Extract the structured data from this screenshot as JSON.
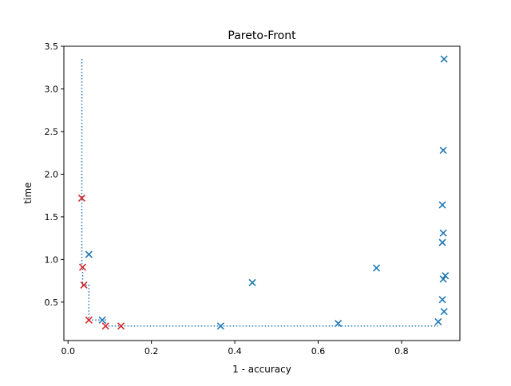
{
  "chart_data": {
    "type": "scatter",
    "title": "Pareto-Front",
    "xlabel": "1 - accuracy",
    "ylabel": "time",
    "xlim": [
      -0.01,
      0.94
    ],
    "ylim": [
      0.05,
      3.5
    ],
    "xticks": [
      0.0,
      0.2,
      0.4,
      0.6,
      0.8
    ],
    "xtick_labels": [
      "0.0",
      "0.2",
      "0.4",
      "0.6",
      "0.8"
    ],
    "yticks": [
      0.5,
      1.0,
      1.5,
      2.0,
      2.5,
      3.0,
      3.5
    ],
    "ytick_labels": [
      "0.5",
      "1.0",
      "1.5",
      "2.0",
      "2.5",
      "3.0",
      "3.5"
    ],
    "grid": false,
    "colors": {
      "dominated": "#1f77b4",
      "pareto": "#d62728",
      "front_line": "#1f77b4"
    },
    "series": [
      {
        "marker": "x",
        "color": "#1f77b4",
        "points": [
          {
            "x": 0.05,
            "y": 1.06
          },
          {
            "x": 0.082,
            "y": 0.29
          },
          {
            "x": 0.366,
            "y": 0.22
          },
          {
            "x": 0.442,
            "y": 0.73
          },
          {
            "x": 0.648,
            "y": 0.25
          },
          {
            "x": 0.74,
            "y": 0.9
          },
          {
            "x": 0.888,
            "y": 0.27
          },
          {
            "x": 0.898,
            "y": 0.53
          },
          {
            "x": 0.898,
            "y": 1.2
          },
          {
            "x": 0.898,
            "y": 1.64
          },
          {
            "x": 0.9,
            "y": 0.77
          },
          {
            "x": 0.9,
            "y": 1.31
          },
          {
            "x": 0.9,
            "y": 2.28
          },
          {
            "x": 0.902,
            "y": 0.39
          },
          {
            "x": 0.902,
            "y": 3.35
          },
          {
            "x": 0.905,
            "y": 0.81
          }
        ]
      },
      {
        "marker": "x",
        "color": "#d62728",
        "points": [
          {
            "x": 0.033,
            "y": 1.72
          },
          {
            "x": 0.035,
            "y": 0.91
          },
          {
            "x": 0.038,
            "y": 0.7
          },
          {
            "x": 0.05,
            "y": 0.29
          },
          {
            "x": 0.09,
            "y": 0.22
          },
          {
            "x": 0.127,
            "y": 0.22
          }
        ]
      }
    ],
    "front_line": {
      "style": "dotted",
      "color": "#1f77b4",
      "points": [
        {
          "x": 0.033,
          "y": 3.35
        },
        {
          "x": 0.033,
          "y": 0.91
        },
        {
          "x": 0.035,
          "y": 0.91
        },
        {
          "x": 0.035,
          "y": 0.7
        },
        {
          "x": 0.05,
          "y": 0.7
        },
        {
          "x": 0.05,
          "y": 0.29
        },
        {
          "x": 0.09,
          "y": 0.29
        },
        {
          "x": 0.09,
          "y": 0.22
        },
        {
          "x": 0.888,
          "y": 0.22
        }
      ]
    }
  }
}
